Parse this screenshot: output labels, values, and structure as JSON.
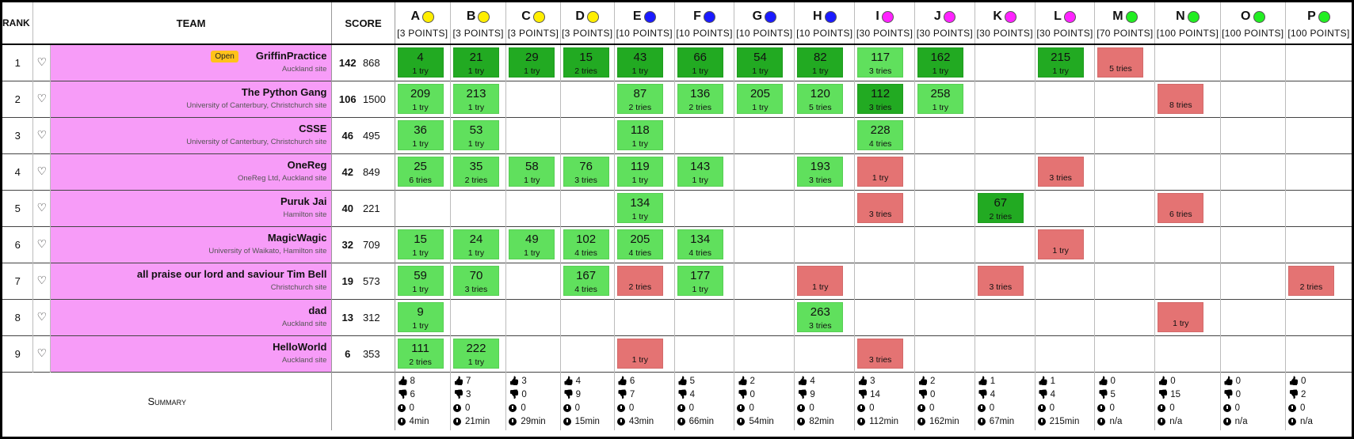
{
  "headers": {
    "rank": "RANK",
    "team": "TEAM",
    "score": "SCORE"
  },
  "problems": [
    {
      "letter": "A",
      "points": "[3 POINTS]",
      "color": "#ffee00"
    },
    {
      "letter": "B",
      "points": "[3 POINTS]",
      "color": "#ffee00"
    },
    {
      "letter": "C",
      "points": "[3 POINTS]",
      "color": "#ffee00"
    },
    {
      "letter": "D",
      "points": "[3 POINTS]",
      "color": "#ffee00"
    },
    {
      "letter": "E",
      "points": "[10 POINTS]",
      "color": "#1a1aff"
    },
    {
      "letter": "F",
      "points": "[10 POINTS]",
      "color": "#1a1aff"
    },
    {
      "letter": "G",
      "points": "[10 POINTS]",
      "color": "#1a1aff"
    },
    {
      "letter": "H",
      "points": "[10 POINTS]",
      "color": "#1a1aff"
    },
    {
      "letter": "I",
      "points": "[30 POINTS]",
      "color": "#ff22ff"
    },
    {
      "letter": "J",
      "points": "[30 POINTS]",
      "color": "#ff22ff"
    },
    {
      "letter": "K",
      "points": "[30 POINTS]",
      "color": "#ff22ff"
    },
    {
      "letter": "L",
      "points": "[30 POINTS]",
      "color": "#ff22ff"
    },
    {
      "letter": "M",
      "points": "[70 POINTS]",
      "color": "#22ee22"
    },
    {
      "letter": "N",
      "points": "[100 POINTS]",
      "color": "#22ee22"
    },
    {
      "letter": "O",
      "points": "[100 POINTS]",
      "color": "#22ee22"
    },
    {
      "letter": "P",
      "points": "[100 POINTS]",
      "color": "#22ee22"
    }
  ],
  "colors": {
    "first": "#22aa22",
    "solved": "#60e05d",
    "fail": "#e47373",
    "team_bg": "#f79cf8",
    "badge": "#ffc21a"
  },
  "teams": [
    {
      "rank": "1",
      "name": "GriffinPractice",
      "site": "Auckland site",
      "badge": "Open",
      "solved": "142",
      "penalty": "868",
      "cells": [
        {
          "s": "first",
          "t": "4",
          "n": "1 try"
        },
        {
          "s": "first",
          "t": "21",
          "n": "1 try"
        },
        {
          "s": "first",
          "t": "29",
          "n": "1 try"
        },
        {
          "s": "first",
          "t": "15",
          "n": "2 tries"
        },
        {
          "s": "first",
          "t": "43",
          "n": "1 try"
        },
        {
          "s": "first",
          "t": "66",
          "n": "1 try"
        },
        {
          "s": "first",
          "t": "54",
          "n": "1 try"
        },
        {
          "s": "first",
          "t": "82",
          "n": "1 try"
        },
        {
          "s": "solved",
          "t": "117",
          "n": "3 tries"
        },
        {
          "s": "first",
          "t": "162",
          "n": "1 try"
        },
        null,
        {
          "s": "first",
          "t": "215",
          "n": "1 try"
        },
        {
          "s": "fail",
          "t": "",
          "n": "5 tries"
        },
        null,
        null,
        null
      ]
    },
    {
      "rank": "2",
      "name": "The Python Gang",
      "site": "University of Canterbury, Christchurch site",
      "badge": "",
      "solved": "106",
      "penalty": "1500",
      "cells": [
        {
          "s": "solved",
          "t": "209",
          "n": "1 try"
        },
        {
          "s": "solved",
          "t": "213",
          "n": "1 try"
        },
        null,
        null,
        {
          "s": "solved",
          "t": "87",
          "n": "2 tries"
        },
        {
          "s": "solved",
          "t": "136",
          "n": "2 tries"
        },
        {
          "s": "solved",
          "t": "205",
          "n": "1 try"
        },
        {
          "s": "solved",
          "t": "120",
          "n": "5 tries"
        },
        {
          "s": "first",
          "t": "112",
          "n": "3 tries"
        },
        {
          "s": "solved",
          "t": "258",
          "n": "1 try"
        },
        null,
        null,
        null,
        {
          "s": "fail",
          "t": "",
          "n": "8 tries"
        },
        null,
        null
      ]
    },
    {
      "rank": "3",
      "name": "CSSE",
      "site": "University of Canterbury, Christchurch site",
      "badge": "",
      "solved": "46",
      "penalty": "495",
      "cells": [
        {
          "s": "solved",
          "t": "36",
          "n": "1 try"
        },
        {
          "s": "solved",
          "t": "53",
          "n": "1 try"
        },
        null,
        null,
        {
          "s": "solved",
          "t": "118",
          "n": "1 try"
        },
        null,
        null,
        null,
        {
          "s": "solved",
          "t": "228",
          "n": "4 tries"
        },
        null,
        null,
        null,
        null,
        null,
        null,
        null
      ]
    },
    {
      "rank": "4",
      "name": "OneReg",
      "site": "OneReg Ltd, Auckland site",
      "badge": "",
      "solved": "42",
      "penalty": "849",
      "cells": [
        {
          "s": "solved",
          "t": "25",
          "n": "6 tries"
        },
        {
          "s": "solved",
          "t": "35",
          "n": "2 tries"
        },
        {
          "s": "solved",
          "t": "58",
          "n": "1 try"
        },
        {
          "s": "solved",
          "t": "76",
          "n": "3 tries"
        },
        {
          "s": "solved",
          "t": "119",
          "n": "1 try"
        },
        {
          "s": "solved",
          "t": "143",
          "n": "1 try"
        },
        null,
        {
          "s": "solved",
          "t": "193",
          "n": "3 tries"
        },
        {
          "s": "fail",
          "t": "",
          "n": "1 try"
        },
        null,
        null,
        {
          "s": "fail",
          "t": "",
          "n": "3 tries"
        },
        null,
        null,
        null,
        null
      ]
    },
    {
      "rank": "5",
      "name": "Puruk Jai",
      "site": "Hamilton site",
      "badge": "",
      "solved": "40",
      "penalty": "221",
      "cells": [
        null,
        null,
        null,
        null,
        {
          "s": "solved",
          "t": "134",
          "n": "1 try"
        },
        null,
        null,
        null,
        {
          "s": "fail",
          "t": "",
          "n": "3 tries"
        },
        null,
        {
          "s": "first",
          "t": "67",
          "n": "2 tries"
        },
        null,
        null,
        {
          "s": "fail",
          "t": "",
          "n": "6 tries"
        },
        null,
        null
      ]
    },
    {
      "rank": "6",
      "name": "MagicWagic",
      "site": "University of Waikato, Hamilton site",
      "badge": "",
      "solved": "32",
      "penalty": "709",
      "cells": [
        {
          "s": "solved",
          "t": "15",
          "n": "1 try"
        },
        {
          "s": "solved",
          "t": "24",
          "n": "1 try"
        },
        {
          "s": "solved",
          "t": "49",
          "n": "1 try"
        },
        {
          "s": "solved",
          "t": "102",
          "n": "4 tries"
        },
        {
          "s": "solved",
          "t": "205",
          "n": "4 tries"
        },
        {
          "s": "solved",
          "t": "134",
          "n": "4 tries"
        },
        null,
        null,
        null,
        null,
        null,
        {
          "s": "fail",
          "t": "",
          "n": "1 try"
        },
        null,
        null,
        null,
        null
      ]
    },
    {
      "rank": "7",
      "name": "all praise our lord and saviour Tim Bell",
      "site": "Christchurch site",
      "badge": "",
      "solved": "19",
      "penalty": "573",
      "cells": [
        {
          "s": "solved",
          "t": "59",
          "n": "1 try"
        },
        {
          "s": "solved",
          "t": "70",
          "n": "3 tries"
        },
        null,
        {
          "s": "solved",
          "t": "167",
          "n": "4 tries"
        },
        {
          "s": "fail",
          "t": "",
          "n": "2 tries"
        },
        {
          "s": "solved",
          "t": "177",
          "n": "1 try"
        },
        null,
        {
          "s": "fail",
          "t": "",
          "n": "1 try"
        },
        null,
        null,
        {
          "s": "fail",
          "t": "",
          "n": "3 tries"
        },
        null,
        null,
        null,
        null,
        {
          "s": "fail",
          "t": "",
          "n": "2 tries"
        }
      ]
    },
    {
      "rank": "8",
      "name": "dad",
      "site": "Auckland site",
      "badge": "",
      "solved": "13",
      "penalty": "312",
      "cells": [
        {
          "s": "solved",
          "t": "9",
          "n": "1 try"
        },
        null,
        null,
        null,
        null,
        null,
        null,
        {
          "s": "solved",
          "t": "263",
          "n": "3 tries"
        },
        null,
        null,
        null,
        null,
        null,
        {
          "s": "fail",
          "t": "",
          "n": "1 try"
        },
        null,
        null
      ]
    },
    {
      "rank": "9",
      "name": "HelloWorld",
      "site": "Auckland site",
      "badge": "",
      "solved": "6",
      "penalty": "353",
      "cells": [
        {
          "s": "solved",
          "t": "111",
          "n": "2 tries"
        },
        {
          "s": "solved",
          "t": "222",
          "n": "1 try"
        },
        null,
        null,
        {
          "s": "fail",
          "t": "",
          "n": "1 try"
        },
        null,
        null,
        null,
        {
          "s": "fail",
          "t": "",
          "n": "3 tries"
        },
        null,
        null,
        null,
        null,
        null,
        null,
        null
      ]
    }
  ],
  "summary": {
    "label": "Summary",
    "items": [
      {
        "up": "8",
        "down": "6",
        "q": "0",
        "time": "4min"
      },
      {
        "up": "7",
        "down": "3",
        "q": "0",
        "time": "21min"
      },
      {
        "up": "3",
        "down": "0",
        "q": "0",
        "time": "29min"
      },
      {
        "up": "4",
        "down": "9",
        "q": "0",
        "time": "15min"
      },
      {
        "up": "6",
        "down": "7",
        "q": "0",
        "time": "43min"
      },
      {
        "up": "5",
        "down": "4",
        "q": "0",
        "time": "66min"
      },
      {
        "up": "2",
        "down": "0",
        "q": "0",
        "time": "54min"
      },
      {
        "up": "4",
        "down": "9",
        "q": "0",
        "time": "82min"
      },
      {
        "up": "3",
        "down": "14",
        "q": "0",
        "time": "112min"
      },
      {
        "up": "2",
        "down": "0",
        "q": "0",
        "time": "162min"
      },
      {
        "up": "1",
        "down": "4",
        "q": "0",
        "time": "67min"
      },
      {
        "up": "1",
        "down": "4",
        "q": "0",
        "time": "215min"
      },
      {
        "up": "0",
        "down": "5",
        "q": "0",
        "time": "n/a"
      },
      {
        "up": "0",
        "down": "15",
        "q": "0",
        "time": "n/a"
      },
      {
        "up": "0",
        "down": "0",
        "q": "0",
        "time": "n/a"
      },
      {
        "up": "0",
        "down": "2",
        "q": "0",
        "time": "n/a"
      }
    ]
  }
}
